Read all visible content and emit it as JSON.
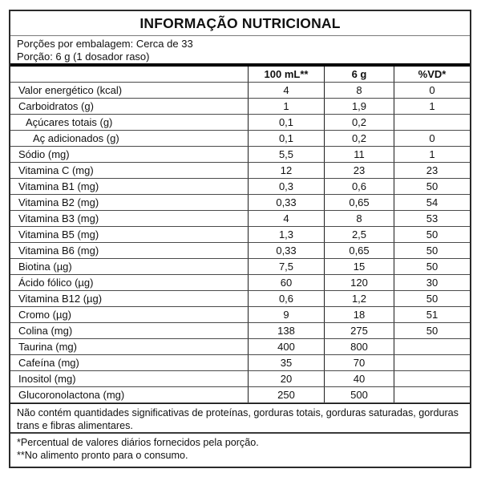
{
  "title": "INFORMAÇÃO NUTRICIONAL",
  "serving": {
    "line1": "Porções por embalagem: Cerca de 33",
    "line2": "Porção: 6 g (1 dosador raso)"
  },
  "table": {
    "columns": [
      "",
      "100 mL**",
      "6 g",
      "%VD*"
    ],
    "rows": [
      {
        "label": "Valor energético (kcal)",
        "indent": 0,
        "per100ml": "4",
        "per6g": "8",
        "vd": "0"
      },
      {
        "label": "Carboidratos (g)",
        "indent": 0,
        "per100ml": "1",
        "per6g": "1,9",
        "vd": "1"
      },
      {
        "label": "Açúcares totais (g)",
        "indent": 1,
        "per100ml": "0,1",
        "per6g": "0,2",
        "vd": ""
      },
      {
        "label": "Aç adicionados (g)",
        "indent": 2,
        "per100ml": "0,1",
        "per6g": "0,2",
        "vd": "0"
      },
      {
        "label": "Sódio (mg)",
        "indent": 0,
        "per100ml": "5,5",
        "per6g": "11",
        "vd": "1"
      },
      {
        "label": "Vitamina C (mg)",
        "indent": 0,
        "per100ml": "12",
        "per6g": "23",
        "vd": "23"
      },
      {
        "label": "Vitamina B1 (mg)",
        "indent": 0,
        "per100ml": "0,3",
        "per6g": "0,6",
        "vd": "50"
      },
      {
        "label": "Vitamina B2 (mg)",
        "indent": 0,
        "per100ml": "0,33",
        "per6g": "0,65",
        "vd": "54"
      },
      {
        "label": "Vitamina B3 (mg)",
        "indent": 0,
        "per100ml": "4",
        "per6g": "8",
        "vd": "53"
      },
      {
        "label": "Vitamina B5 (mg)",
        "indent": 0,
        "per100ml": "1,3",
        "per6g": "2,5",
        "vd": "50"
      },
      {
        "label": "Vitamina B6 (mg)",
        "indent": 0,
        "per100ml": "0,33",
        "per6g": "0,65",
        "vd": "50"
      },
      {
        "label": "Biotina (µg)",
        "indent": 0,
        "per100ml": "7,5",
        "per6g": "15",
        "vd": "50"
      },
      {
        "label": "Ácido fólico (µg)",
        "indent": 0,
        "per100ml": "60",
        "per6g": "120",
        "vd": "30"
      },
      {
        "label": "Vitamina B12 (µg)",
        "indent": 0,
        "per100ml": "0,6",
        "per6g": "1,2",
        "vd": "50"
      },
      {
        "label": "Cromo (µg)",
        "indent": 0,
        "per100ml": "9",
        "per6g": "18",
        "vd": "51"
      },
      {
        "label": "Colina (mg)",
        "indent": 0,
        "per100ml": "138",
        "per6g": "275",
        "vd": "50"
      },
      {
        "label": "Taurina (mg)",
        "indent": 0,
        "per100ml": "400",
        "per6g": "800",
        "vd": ""
      },
      {
        "label": "Cafeína (mg)",
        "indent": 0,
        "per100ml": "35",
        "per6g": "70",
        "vd": ""
      },
      {
        "label": "Inositol (mg)",
        "indent": 0,
        "per100ml": "20",
        "per6g": "40",
        "vd": ""
      },
      {
        "label": "Glucoronolactona (mg)",
        "indent": 0,
        "per100ml": "250",
        "per6g": "500",
        "vd": ""
      }
    ]
  },
  "notes": {
    "no_significant": "Não contém quantidades significativas de proteínas, gorduras totais, gorduras saturadas, gorduras trans e fibras alimentares.",
    "footnote1": "*Percentual de valores diários fornecidos pela porção.",
    "footnote2": "**No alimento pronto para o consumo."
  }
}
